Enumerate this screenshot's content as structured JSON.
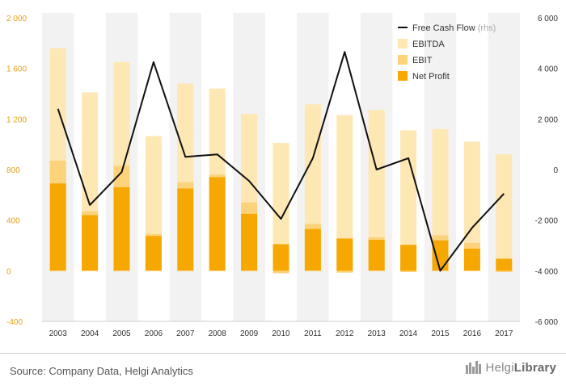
{
  "chart_data": {
    "type": "bar",
    "categories": [
      "2003",
      "2004",
      "2005",
      "2006",
      "2007",
      "2008",
      "2009",
      "2010",
      "2011",
      "2012",
      "2013",
      "2014",
      "2015",
      "2016",
      "2017"
    ],
    "series": [
      {
        "name": "EBITDA",
        "axis": "left",
        "color": "#fde7b3",
        "values": [
          1760,
          1410,
          1650,
          1065,
          1480,
          1440,
          1240,
          1010,
          1315,
          1230,
          1270,
          1110,
          1120,
          1020,
          920
        ]
      },
      {
        "name": "EBIT",
        "axis": "left",
        "color": "#fcd27a",
        "values": [
          870,
          470,
          830,
          290,
          700,
          760,
          540,
          -20,
          370,
          -15,
          265,
          -10,
          280,
          220,
          -10
        ]
      },
      {
        "name": "Net Profit",
        "axis": "left",
        "color": "#f7a800",
        "values": [
          690,
          440,
          660,
          275,
          650,
          740,
          450,
          210,
          330,
          255,
          245,
          205,
          240,
          175,
          95
        ]
      },
      {
        "name": "Free Cash Flow",
        "axis": "right",
        "unit": "(rhs)",
        "color": "#111111",
        "values": [
          2400,
          -1400,
          -100,
          4250,
          500,
          600,
          -450,
          -1950,
          450,
          4650,
          0,
          450,
          -4000,
          -2300,
          -950
        ]
      }
    ],
    "ylim_left": [
      -400,
      2000
    ],
    "yticks_left": [
      -400,
      0,
      400,
      800,
      1200,
      1600,
      2000
    ],
    "ytick_labels_left": [
      "-400",
      "0",
      "400",
      "800",
      "1 200",
      "1 600",
      "2 000"
    ],
    "ylim_right": [
      -6000,
      6000
    ],
    "yticks_right": [
      -6000,
      -4000,
      -2000,
      0,
      2000,
      4000,
      6000
    ],
    "ytick_labels_right": [
      "-6 000",
      "-4 000",
      "-2 000",
      "0",
      "2 000",
      "4 000",
      "6 000"
    ],
    "legend_position": "top-right",
    "grid": "vertical-bands",
    "xlabel": "",
    "ylabel": "",
    "title": ""
  },
  "footer": {
    "source": "Source: Company Data, Helgi Analytics",
    "logo_light": "Helgi",
    "logo_bold": "Library"
  },
  "colors": {
    "left_axis_text": "#e3a21a",
    "right_axis_text": "#333333",
    "band": "#f2f2f2"
  }
}
